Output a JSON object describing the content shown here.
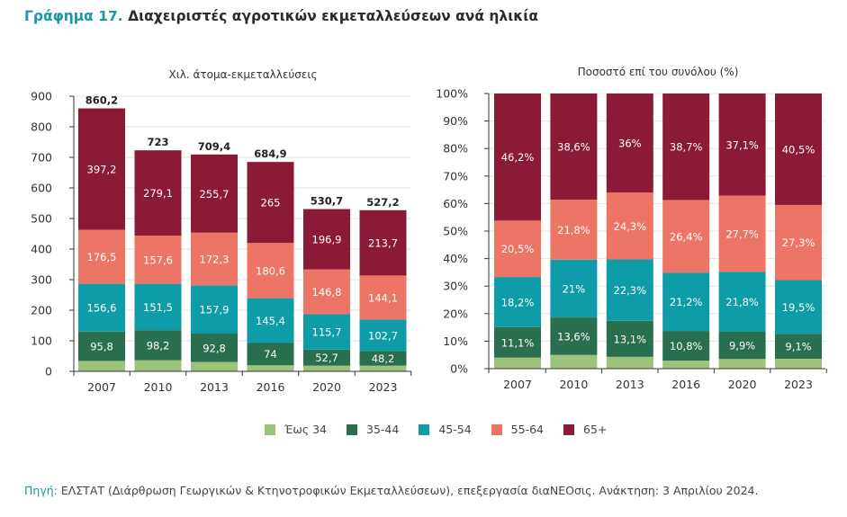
{
  "title": {
    "prefix": "Γράφημα 17.",
    "text": "Διαχειριστές αγροτικών εκμεταλλεύσεων ανά ηλικία"
  },
  "colors": {
    "Έως 34": "#9dc27a",
    "35-44": "#2a6e50",
    "45-54": "#0e9da8",
    "55-64": "#ec7565",
    "65+": "#8b1a37"
  },
  "legend": [
    {
      "label": "Έως 34",
      "color": "#9dc27a"
    },
    {
      "label": "35-44",
      "color": "#2a6e50"
    },
    {
      "label": "45-54",
      "color": "#0e9da8"
    },
    {
      "label": "55-64",
      "color": "#ec7565"
    },
    {
      "label": "65+",
      "color": "#8b1a37"
    }
  ],
  "source": {
    "label": "Πηγή:",
    "text": " ΕΛΣΤΑΤ (Διάρθρωση Γεωργικών & Κτηνοτροφικών Εκμεταλλεύσεων), επεξεργασία διαΝΕΟσις. Ανάκτηση: 3 Απριλίου 2024."
  },
  "chart_data": [
    {
      "type": "bar",
      "stacked": true,
      "title": "Χιλ. άτομα-εκμεταλλεύσεις",
      "xlabel": "",
      "ylabel": "",
      "categories": [
        "2007",
        "2010",
        "2013",
        "2016",
        "2020",
        "2023"
      ],
      "ylim": [
        0,
        900
      ],
      "yticks": [
        0,
        100,
        200,
        300,
        400,
        500,
        600,
        700,
        800,
        900
      ],
      "ytick_labels": [
        "0",
        "100",
        "200",
        "300",
        "400",
        "500",
        "600",
        "700",
        "800",
        "900"
      ],
      "grid": true,
      "series": [
        {
          "name": "Έως 34",
          "values": [
            34.1,
            36.6,
            30.7,
            19.9,
            18.6,
            18.5
          ],
          "labels": [
            "",
            "",
            "",
            "",
            "",
            ""
          ]
        },
        {
          "name": "35-44",
          "values": [
            95.8,
            98.2,
            92.8,
            74,
            52.7,
            48.2
          ],
          "labels": [
            "95,8",
            "98,2",
            "92,8",
            "74",
            "52,7",
            "48,2"
          ]
        },
        {
          "name": "45-54",
          "values": [
            156.6,
            151.5,
            157.9,
            145.4,
            115.7,
            102.7
          ],
          "labels": [
            "156,6",
            "151,5",
            "157,9",
            "145,4",
            "115,7",
            "102,7"
          ]
        },
        {
          "name": "55-64",
          "values": [
            176.5,
            157.6,
            172.3,
            180.6,
            146.8,
            144.1
          ],
          "labels": [
            "176,5",
            "157,6",
            "172,3",
            "180,6",
            "146,8",
            "144,1"
          ]
        },
        {
          "name": "65+",
          "values": [
            397.2,
            279.1,
            255.7,
            265,
            196.9,
            213.7
          ],
          "labels": [
            "397,2",
            "279,1",
            "255,7",
            "265",
            "196,9",
            "213,7"
          ]
        }
      ],
      "totals": [
        860.2,
        723,
        709.4,
        684.9,
        530.7,
        527.2
      ],
      "total_labels": [
        "860,2",
        "723",
        "709,4",
        "684,9",
        "530,7",
        "527,2"
      ]
    },
    {
      "type": "bar",
      "stacked": true,
      "title": "Ποσοστό επί του συνόλου (%)",
      "xlabel": "",
      "ylabel": "",
      "categories": [
        "2007",
        "2010",
        "2013",
        "2016",
        "2020",
        "2023"
      ],
      "ylim": [
        0,
        100
      ],
      "yticks": [
        0,
        10,
        20,
        30,
        40,
        50,
        60,
        70,
        80,
        90,
        100
      ],
      "ytick_labels": [
        "0%",
        "10%",
        "20%",
        "30%",
        "40%",
        "50%",
        "60%",
        "70%",
        "80%",
        "90%",
        "100%"
      ],
      "grid": true,
      "series": [
        {
          "name": "Έως 34",
          "values": [
            4.0,
            5.0,
            4.3,
            2.9,
            3.5,
            3.6
          ],
          "labels": [
            "",
            "",
            "",
            "",
            "",
            ""
          ]
        },
        {
          "name": "35-44",
          "values": [
            11.1,
            13.6,
            13.1,
            10.8,
            9.9,
            9.1
          ],
          "labels": [
            "11,1%",
            "13,6%",
            "13,1%",
            "10,8%",
            "9,9%",
            "9,1%"
          ]
        },
        {
          "name": "45-54",
          "values": [
            18.2,
            21,
            22.3,
            21.2,
            21.8,
            19.5
          ],
          "labels": [
            "18,2%",
            "21%",
            "22,3%",
            "21,2%",
            "21,8%",
            "19,5%"
          ]
        },
        {
          "name": "55-64",
          "values": [
            20.5,
            21.8,
            24.3,
            26.4,
            27.7,
            27.3
          ],
          "labels": [
            "20,5%",
            "21,8%",
            "24,3%",
            "26,4%",
            "27,7%",
            "27,3%"
          ]
        },
        {
          "name": "65+",
          "values": [
            46.2,
            38.6,
            36,
            38.7,
            37.1,
            40.5
          ],
          "labels": [
            "46,2%",
            "38,6%",
            "36%",
            "38,7%",
            "37,1%",
            "40,5%"
          ]
        }
      ],
      "legend_position": "bottom"
    }
  ]
}
